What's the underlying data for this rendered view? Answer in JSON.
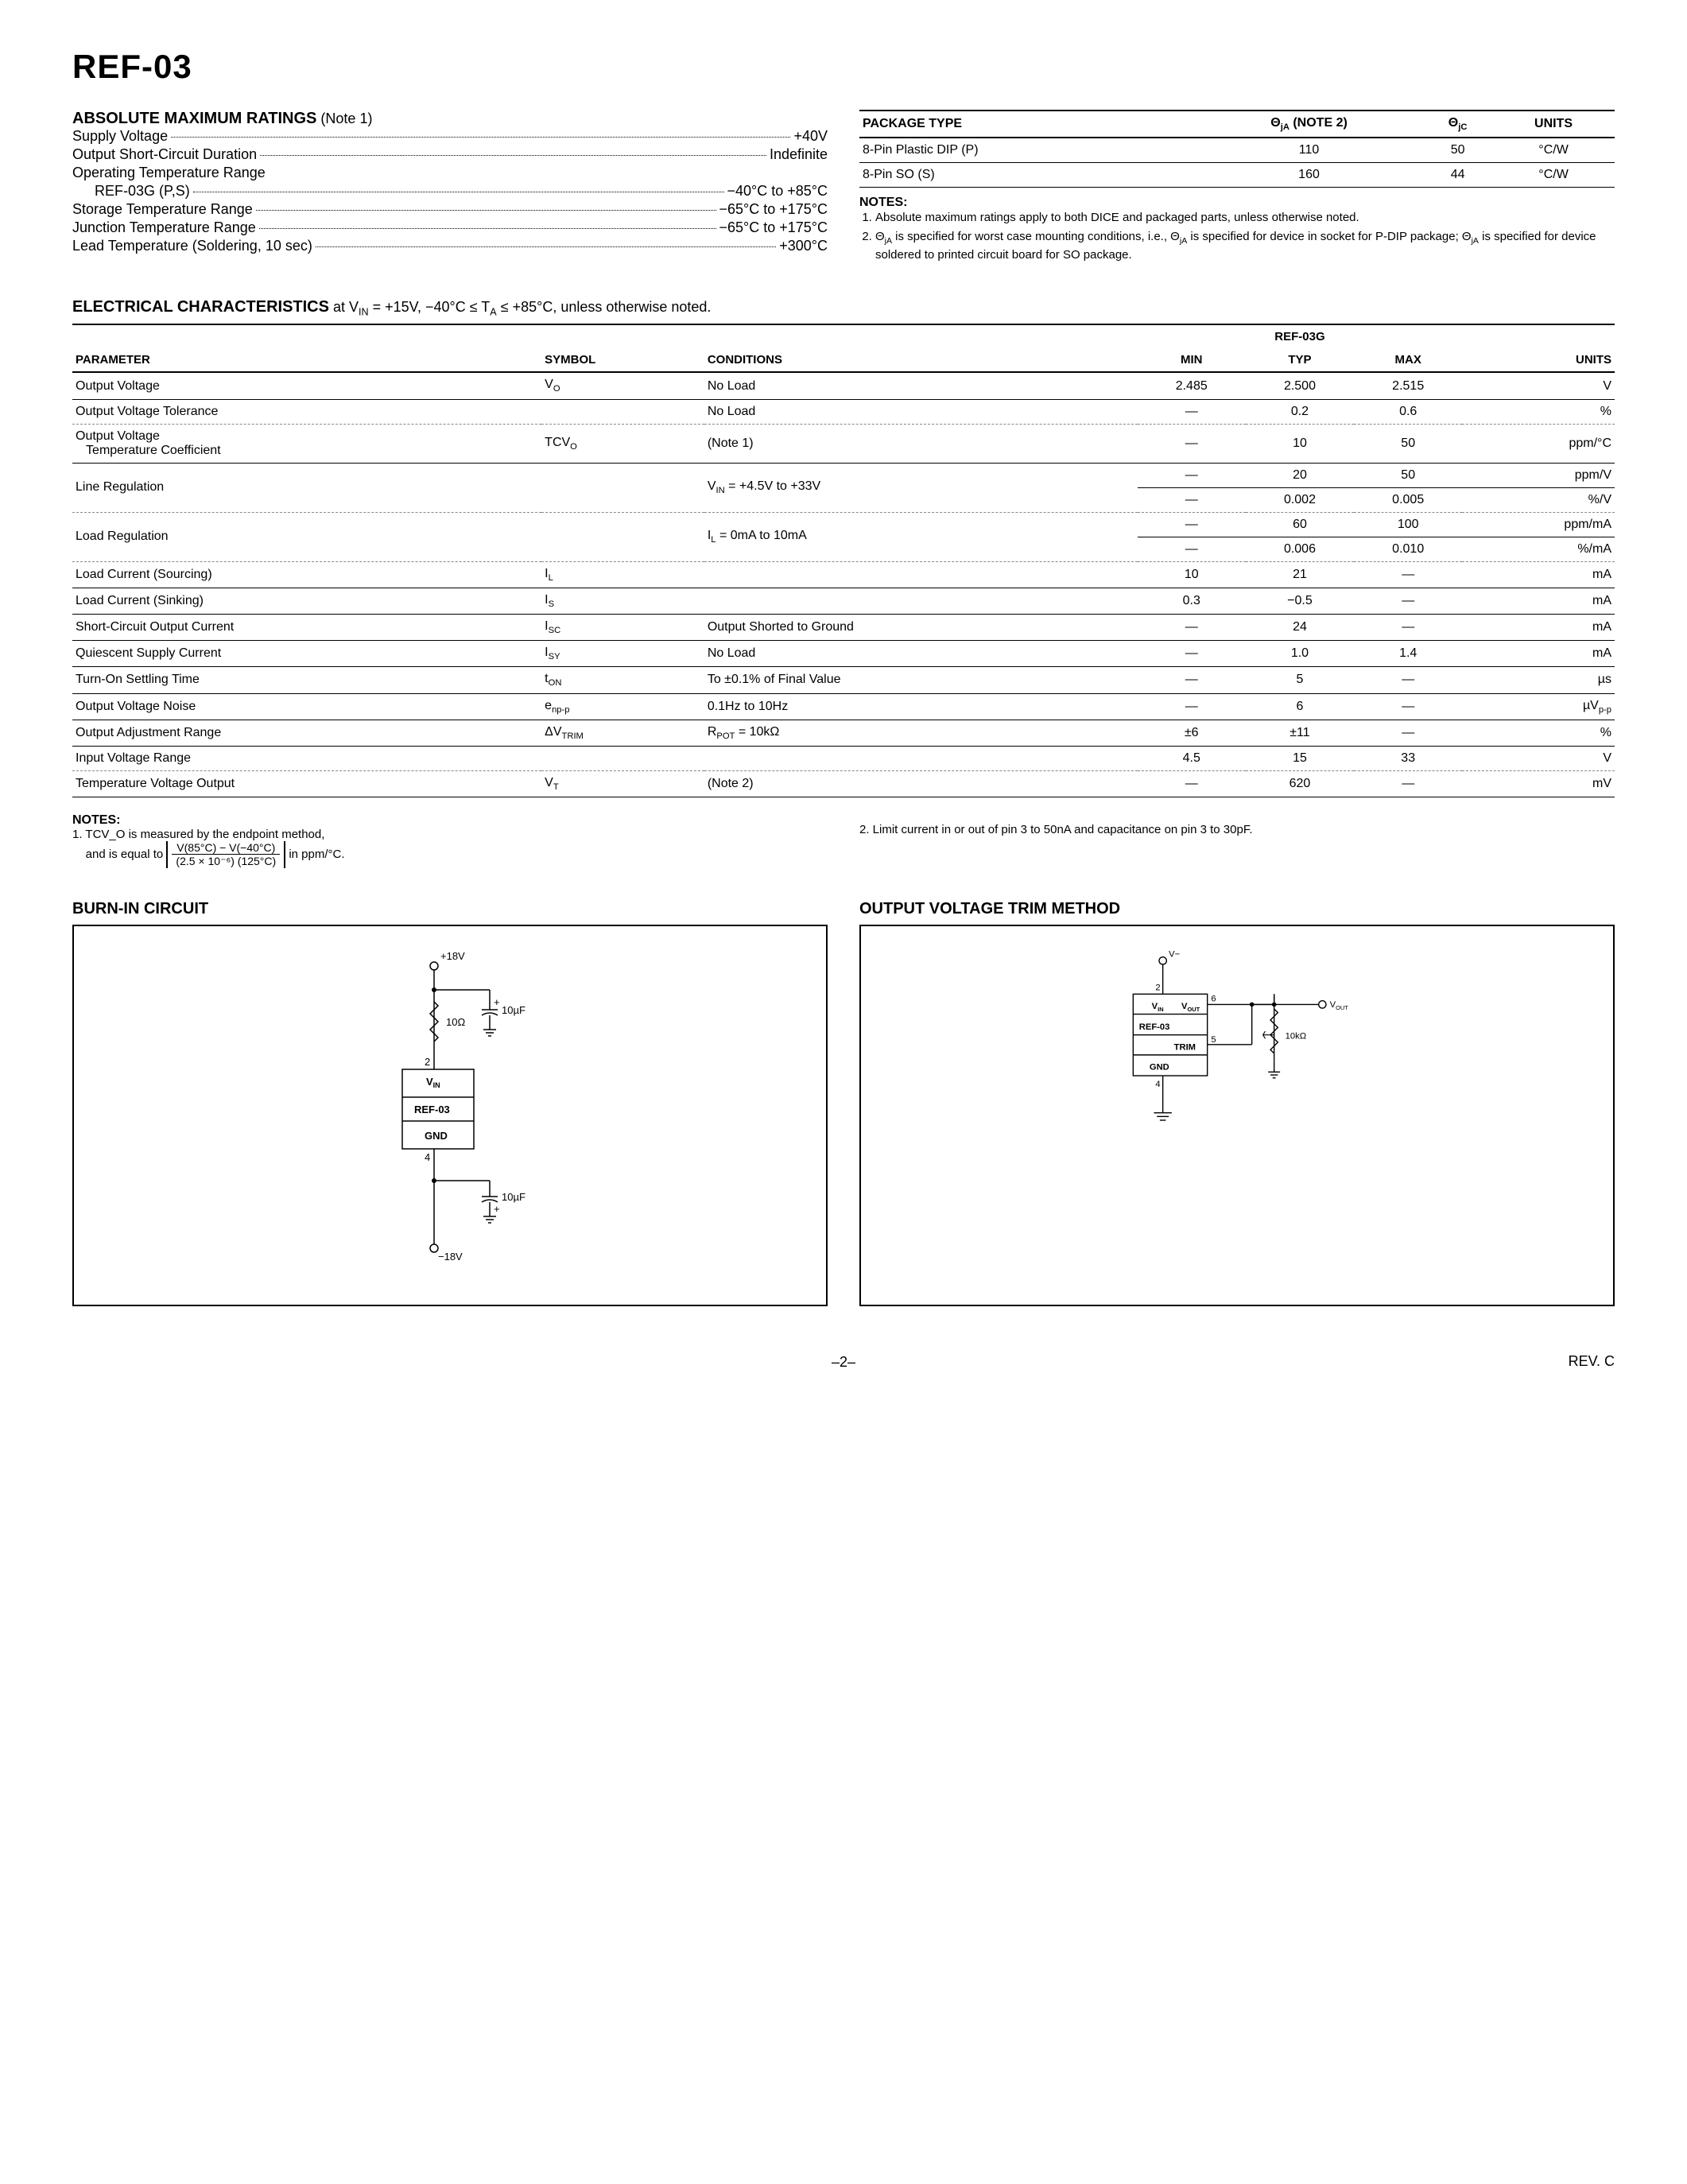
{
  "part": "REF-03",
  "amr": {
    "heading": "ABSOLUTE MAXIMUM RATINGS",
    "head_note": "(Note 1)",
    "lines": [
      {
        "label": "Supply Voltage",
        "value": "+40V",
        "indent": false
      },
      {
        "label": "Output Short-Circuit Duration",
        "value": "Indefinite",
        "indent": false
      },
      {
        "label": "Operating Temperature Range",
        "value": "",
        "indent": false
      },
      {
        "label": "REF-03G (P,S)",
        "value": "−40°C to +85°C",
        "indent": true
      },
      {
        "label": "Storage Temperature Range",
        "value": "−65°C to +175°C",
        "indent": false
      },
      {
        "label": "Junction Temperature Range",
        "value": "−65°C to +175°C",
        "indent": false
      },
      {
        "label": "Lead Temperature (Soldering, 10 sec)",
        "value": "+300°C",
        "indent": false
      }
    ]
  },
  "pkg": {
    "headers": [
      "PACKAGE TYPE",
      "Θ_jA (NOTE 2)",
      "Θ_jC",
      "UNITS"
    ],
    "rows": [
      [
        "8-Pin Plastic DIP (P)",
        "110",
        "50",
        "°C/W"
      ],
      [
        "8-Pin SO (S)",
        "160",
        "44",
        "°C/W"
      ]
    ],
    "notes_head": "NOTES:",
    "notes": [
      "Absolute maximum ratings apply to both DICE and packaged parts, unless otherwise noted.",
      "Θ_jA is specified for worst case mounting conditions, i.e., Θ_jA is specified for device in socket for P-DIP package; Θ_jA is specified for device soldered to printed circuit board for SO package."
    ]
  },
  "ec": {
    "heading": "ELECTRICAL CHARACTERISTICS",
    "cond": "at V_IN = +15V, −40°C ≤ T_A ≤ +85°C, unless otherwise noted.",
    "group_label": "REF-03G",
    "cols": [
      "PARAMETER",
      "SYMBOL",
      "CONDITIONS",
      "MIN",
      "TYP",
      "MAX",
      "UNITS"
    ],
    "rows": [
      {
        "p": "Output Voltage",
        "s": "V_O",
        "c": "No Load",
        "min": "2.485",
        "typ": "2.500",
        "max": "2.515",
        "u": "V",
        "dashed": false
      },
      {
        "p": "Output Voltage Tolerance",
        "s": "",
        "c": "No Load",
        "min": "—",
        "typ": "0.2",
        "max": "0.6",
        "u": "%",
        "dashed": true
      },
      {
        "p": "Output Voltage\n Temperature Coefficient",
        "s": "TCV_O",
        "c": "(Note 1)",
        "min": "—",
        "typ": "10",
        "max": "50",
        "u": "ppm/°C",
        "dashed": false
      },
      {
        "p": "Line Regulation",
        "s": "",
        "c": "V_IN = +4.5V to +33V",
        "min": "—",
        "typ": "20",
        "max": "50",
        "u": "ppm/V",
        "dashed": false,
        "rowspan": true
      },
      {
        "p": "",
        "s": "",
        "c": "",
        "min": "—",
        "typ": "0.002",
        "max": "0.005",
        "u": "%/V",
        "dashed": true
      },
      {
        "p": "Load Regulation",
        "s": "",
        "c": "I_L = 0mA to 10mA",
        "min": "—",
        "typ": "60",
        "max": "100",
        "u": "ppm/mA",
        "dashed": false,
        "rowspan": true
      },
      {
        "p": "",
        "s": "",
        "c": "",
        "min": "—",
        "typ": "0.006",
        "max": "0.010",
        "u": "%/mA",
        "dashed": true
      },
      {
        "p": "Load Current (Sourcing)",
        "s": "I_L",
        "c": "",
        "min": "10",
        "typ": "21",
        "max": "—",
        "u": "mA",
        "dashed": false
      },
      {
        "p": "Load Current (Sinking)",
        "s": "I_S",
        "c": "",
        "min": "0.3",
        "typ": "−0.5",
        "max": "—",
        "u": "mA",
        "dashed": false
      },
      {
        "p": "Short-Circuit Output Current",
        "s": "I_SC",
        "c": "Output Shorted to Ground",
        "min": "—",
        "typ": "24",
        "max": "—",
        "u": "mA",
        "dashed": false
      },
      {
        "p": "Quiescent Supply Current",
        "s": "I_SY",
        "c": "No Load",
        "min": "—",
        "typ": "1.0",
        "max": "1.4",
        "u": "mA",
        "dashed": false
      },
      {
        "p": "Turn-On Settling Time",
        "s": "t_ON",
        "c": "To ±0.1% of Final Value",
        "min": "—",
        "typ": "5",
        "max": "—",
        "u": "µs",
        "dashed": false
      },
      {
        "p": "Output Voltage Noise",
        "s": "e_np-p",
        "c": "0.1Hz to 10Hz",
        "min": "—",
        "typ": "6",
        "max": "—",
        "u": "µV_p-p",
        "dashed": false
      },
      {
        "p": "Output Adjustment Range",
        "s": "ΔV_TRIM",
        "c": "R_POT = 10kΩ",
        "min": "±6",
        "typ": "±11",
        "max": "—",
        "u": "%",
        "dashed": false
      },
      {
        "p": "Input Voltage Range",
        "s": "",
        "c": "",
        "min": "4.5",
        "typ": "15",
        "max": "33",
        "u": "V",
        "dashed": true
      },
      {
        "p": "Temperature Voltage Output",
        "s": "V_T",
        "c": "(Note 2)",
        "min": "—",
        "typ": "620",
        "max": "—",
        "u": "mV",
        "dashed": false
      }
    ],
    "notes_head": "NOTES:",
    "note1_a": "1. TCV_O is measured by the endpoint method,",
    "note1_b": "and is equal to",
    "note1_num": "V(85°C) − V(−40°C)",
    "note1_den": "(2.5 × 10⁻⁶) (125°C)",
    "note1_c": "in ppm/°C.",
    "note2": "2. Limit current in or out of pin 3 to 50nA and capacitance on pin 3 to 30pF."
  },
  "circ": {
    "burnin_head": "BURN-IN CIRCUIT",
    "trim_head": "OUTPUT VOLTAGE TRIM METHOD",
    "burnin": {
      "v_top": "+18V",
      "cap1": "10µF",
      "r1": "10Ω",
      "pin2": "2",
      "vin": "V_IN",
      "chip": "REF-03",
      "gnd": "GND",
      "pin4": "4",
      "cap2": "10µF",
      "v_bot": "−18V"
    },
    "trim": {
      "vminus": "V−",
      "pin2": "2",
      "vin": "V_IN",
      "chip": "REF-03",
      "trim": "TRIM",
      "gnd": "GND",
      "pin4": "4",
      "pin5": "5",
      "pin6": "6",
      "vout_pin": "V_OUT",
      "vout": "V_OUT",
      "pot": "10kΩ"
    }
  },
  "page_num": "–2–",
  "rev": "REV. C"
}
